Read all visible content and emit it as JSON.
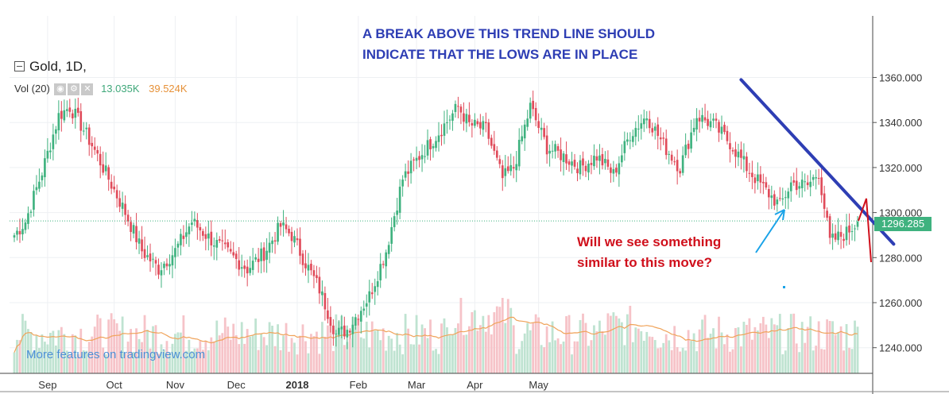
{
  "legend": {
    "symbol": "Gold, 1D,",
    "vol_label": "Vol (20)",
    "vol_value_1": "13.035K",
    "vol_value_2": "39.524K"
  },
  "annotations": {
    "blue": "A BREAK ABOVE THIS TREND LINE SHOULD INDICATE THAT THE LOWS ARE IN PLACE",
    "red": "Will we see something similar to this move?"
  },
  "watermark": "More features on tradingview.com",
  "last_price_label": "1296.285",
  "colors": {
    "up": "#3fb27f",
    "down": "#e04b5a",
    "annotation_blue": "#2e3eb4",
    "annotation_red": "#d0101c"
  },
  "chart_data": {
    "type": "candlestick",
    "title": "Gold, 1D,",
    "x_ticks": [
      "Sep",
      "Oct",
      "Nov",
      "Dec",
      "2018",
      "Feb",
      "Mar",
      "Apr",
      "May"
    ],
    "y_ticks": [
      "1240.000",
      "1260.000",
      "1280.000",
      "1300.000",
      "1320.000",
      "1340.000",
      "1360.000"
    ],
    "ylim": [
      1226,
      1372
    ],
    "last_price": 1296.285,
    "close_anchors": [
      [
        0,
        1290
      ],
      [
        4,
        1296
      ],
      [
        10,
        1318
      ],
      [
        16,
        1343
      ],
      [
        20,
        1347
      ],
      [
        24,
        1339
      ],
      [
        28,
        1330
      ],
      [
        34,
        1315
      ],
      [
        40,
        1300
      ],
      [
        46,
        1283
      ],
      [
        52,
        1275
      ],
      [
        58,
        1283
      ],
      [
        64,
        1296
      ],
      [
        70,
        1289
      ],
      [
        76,
        1283
      ],
      [
        84,
        1275
      ],
      [
        90,
        1282
      ],
      [
        96,
        1294
      ],
      [
        100,
        1290
      ],
      [
        104,
        1280
      ],
      [
        110,
        1266
      ],
      [
        116,
        1246
      ],
      [
        120,
        1248
      ],
      [
        128,
        1263
      ],
      [
        134,
        1283
      ],
      [
        140,
        1315
      ],
      [
        146,
        1325
      ],
      [
        152,
        1334
      ],
      [
        160,
        1347
      ],
      [
        164,
        1339
      ],
      [
        170,
        1337
      ],
      [
        176,
        1315
      ],
      [
        180,
        1320
      ],
      [
        186,
        1347
      ],
      [
        192,
        1329
      ],
      [
        198,
        1325
      ],
      [
        204,
        1320
      ],
      [
        210,
        1325
      ],
      [
        216,
        1317
      ],
      [
        222,
        1335
      ],
      [
        228,
        1343
      ],
      [
        234,
        1330
      ],
      [
        240,
        1320
      ],
      [
        246,
        1343
      ],
      [
        252,
        1339
      ],
      [
        258,
        1331
      ],
      [
        264,
        1320
      ],
      [
        270,
        1311
      ],
      [
        276,
        1303
      ],
      [
        280,
        1313
      ],
      [
        286,
        1312
      ],
      [
        290,
        1318
      ],
      [
        294,
        1287
      ],
      [
        300,
        1291
      ],
      [
        304,
        1296
      ]
    ],
    "volume_series": [
      {
        "name": "Vol (20)",
        "last": 13.035,
        "ma20": 39.524,
        "unit": "K"
      }
    ],
    "trend_line": {
      "from": [
        262,
        1359
      ],
      "to": [
        317,
        1286
      ]
    }
  }
}
